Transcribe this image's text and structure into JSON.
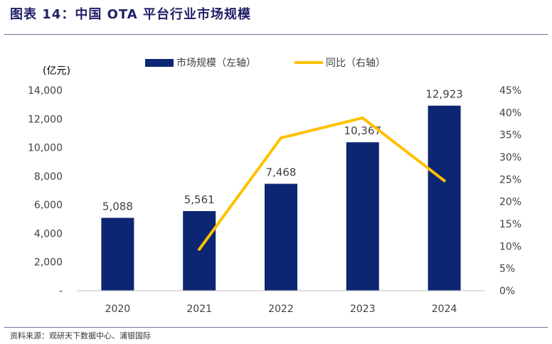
{
  "header": {
    "title": "图表 14：中国 OTA 平台行业市场规模"
  },
  "footer": {
    "source": "资料来源：观研天下数据中心、浦银国际"
  },
  "colors": {
    "bar": "#0d2673",
    "line": "#ffc000",
    "text": "#404040",
    "axis": "#bfbfbf"
  },
  "chart_data": {
    "type": "bar+line",
    "categories": [
      "2020",
      "2021",
      "2022",
      "2023",
      "2024"
    ],
    "series": [
      {
        "name": "市场规模（左轴）",
        "type": "bar",
        "axis": "left",
        "values": [
          5088,
          5561,
          7468,
          10367,
          12923
        ],
        "labels": [
          "5,088",
          "5,561",
          "7,468",
          "10,367",
          "12,923"
        ]
      },
      {
        "name": "同比（右轴）",
        "type": "line",
        "axis": "right",
        "values": [
          null,
          9.3,
          34.3,
          38.8,
          24.7
        ]
      }
    ],
    "y_left": {
      "unit_label": "(亿元)",
      "ylim": [
        0,
        14000
      ],
      "ticks": [
        0,
        2000,
        4000,
        6000,
        8000,
        10000,
        12000,
        14000
      ],
      "tick_labels": [
        "-",
        "2,000",
        "4,000",
        "6,000",
        "8,000",
        "10,000",
        "12,000",
        "14,000"
      ]
    },
    "y_right": {
      "ylim": [
        0,
        45
      ],
      "ticks": [
        0,
        5,
        10,
        15,
        20,
        25,
        30,
        35,
        40,
        45
      ],
      "tick_labels": [
        "0%",
        "5%",
        "10%",
        "15%",
        "20%",
        "25%",
        "30%",
        "35%",
        "40%",
        "45%"
      ]
    },
    "grid": false,
    "legend": "top-center"
  }
}
